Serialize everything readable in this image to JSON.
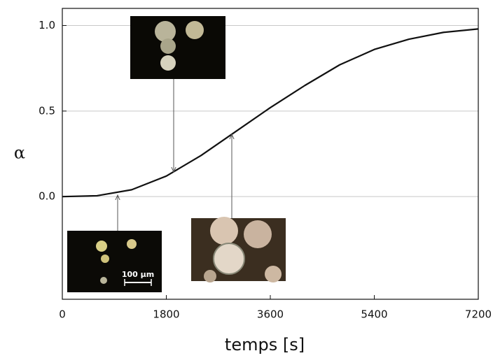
{
  "chart_data": {
    "type": "line",
    "x_label": "temps [s]",
    "y_label": "α",
    "x": [
      0,
      600,
      1200,
      1800,
      2400,
      3000,
      3600,
      4200,
      4800,
      5400,
      6000,
      6600,
      7200
    ],
    "series": [
      {
        "color": "#111111",
        "values": [
          0,
          0.005,
          0.04,
          0.12,
          0.24,
          0.38,
          0.52,
          0.65,
          0.77,
          0.86,
          0.92,
          0.96,
          0.98
        ]
      }
    ],
    "xlim": [
      0,
      7200
    ],
    "xticks": [
      0,
      1800,
      3600,
      5400,
      7200
    ],
    "ylim": [
      -0.6,
      1.1
    ],
    "yticks": [
      {
        "value": 0,
        "label": "0.0"
      },
      {
        "value": 0.5,
        "label": "0.5"
      },
      {
        "value": 1,
        "label": "1.0"
      }
    ],
    "grid": true,
    "annotations": [
      "100 µm"
    ]
  }
}
